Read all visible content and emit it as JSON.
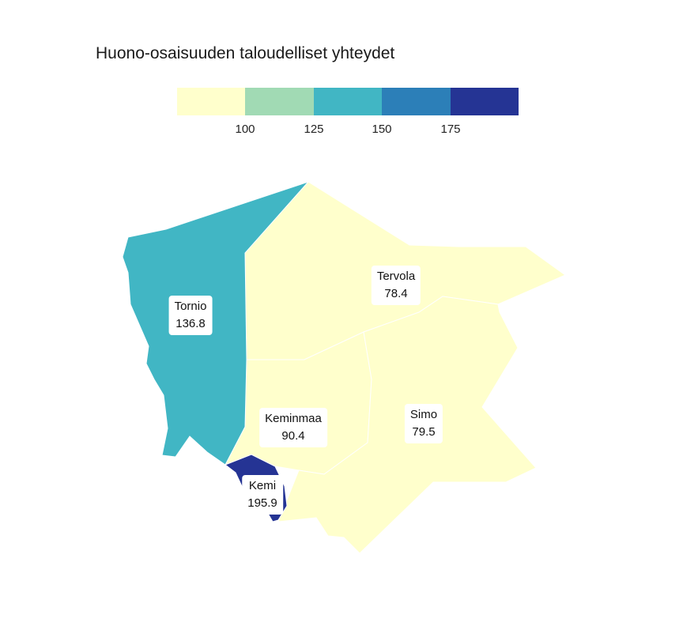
{
  "title": "Huono-osaisuuden taloudelliset yhteydet",
  "legend": {
    "colors": [
      "#ffffcc",
      "#a1dab4",
      "#41b6c4",
      "#2c7fb8",
      "#253494"
    ],
    "ticks": [
      "100",
      "125",
      "150",
      "175"
    ]
  },
  "regions": [
    {
      "name": "Tornio",
      "value": "136.8",
      "color": "#41b6c4"
    },
    {
      "name": "Tervola",
      "value": "78.4",
      "color": "#ffffcc"
    },
    {
      "name": "Keminmaa",
      "value": "90.4",
      "color": "#ffffcc"
    },
    {
      "name": "Simo",
      "value": "79.5",
      "color": "#ffffcc"
    },
    {
      "name": "Kemi",
      "value": "195.9",
      "color": "#253494"
    }
  ]
}
